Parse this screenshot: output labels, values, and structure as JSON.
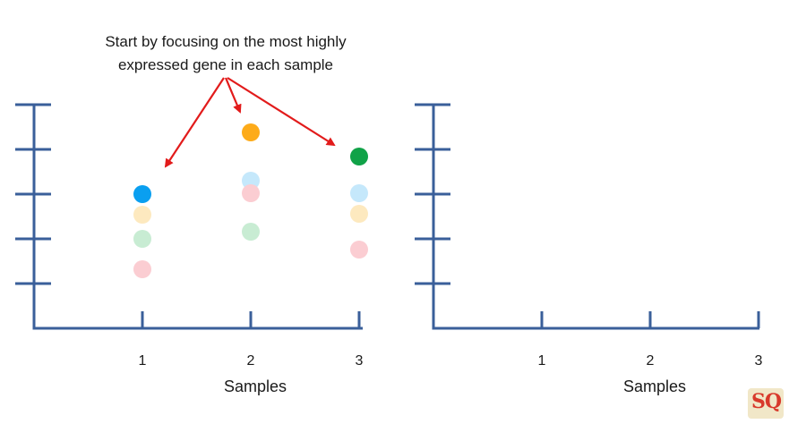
{
  "annotation": {
    "line1": "Start by focusing on the most highly",
    "line2": "expressed gene in each sample",
    "arrow_color": "#e21b1b"
  },
  "chart_data": [
    {
      "type": "scatter",
      "xlabel": "Samples",
      "categories": [
        "1",
        "2",
        "3"
      ],
      "xlim": [
        0,
        3
      ],
      "ylim": [
        0,
        5
      ],
      "y_ticks": [
        1,
        2,
        3,
        4,
        5
      ],
      "axis_color": "#3a5f9a",
      "points": [
        {
          "x": 1,
          "y": 3.0,
          "color": "#0a9ff0",
          "faded": false
        },
        {
          "x": 1,
          "y": 2.54,
          "color": "#fde9bf",
          "faded": true
        },
        {
          "x": 1,
          "y": 2.0,
          "color": "#c8ecd3",
          "faded": true
        },
        {
          "x": 1,
          "y": 1.32,
          "color": "#fbcdd2",
          "faded": true
        },
        {
          "x": 2,
          "y": 4.38,
          "color": "#fdab1a",
          "faded": false
        },
        {
          "x": 2,
          "y": 3.3,
          "color": "#c5e8fb",
          "faded": true
        },
        {
          "x": 2,
          "y": 3.02,
          "color": "#fbcdd2",
          "faded": true
        },
        {
          "x": 2,
          "y": 2.16,
          "color": "#c8ecd3",
          "faded": true
        },
        {
          "x": 3,
          "y": 3.84,
          "color": "#10a248",
          "faded": false
        },
        {
          "x": 3,
          "y": 3.02,
          "color": "#c5e8fb",
          "faded": true
        },
        {
          "x": 3,
          "y": 2.56,
          "color": "#fde9bf",
          "faded": true
        },
        {
          "x": 3,
          "y": 1.76,
          "color": "#fbcdd2",
          "faded": true
        }
      ]
    },
    {
      "type": "scatter",
      "xlabel": "Samples",
      "categories": [
        "1",
        "2",
        "3"
      ],
      "xlim": [
        0,
        3
      ],
      "ylim": [
        0,
        5
      ],
      "y_ticks": [
        1,
        2,
        3,
        4,
        5
      ],
      "axis_color": "#3a5f9a",
      "points": []
    }
  ],
  "logo": {
    "text": "SQ",
    "icon": "statquest-logo-icon"
  }
}
